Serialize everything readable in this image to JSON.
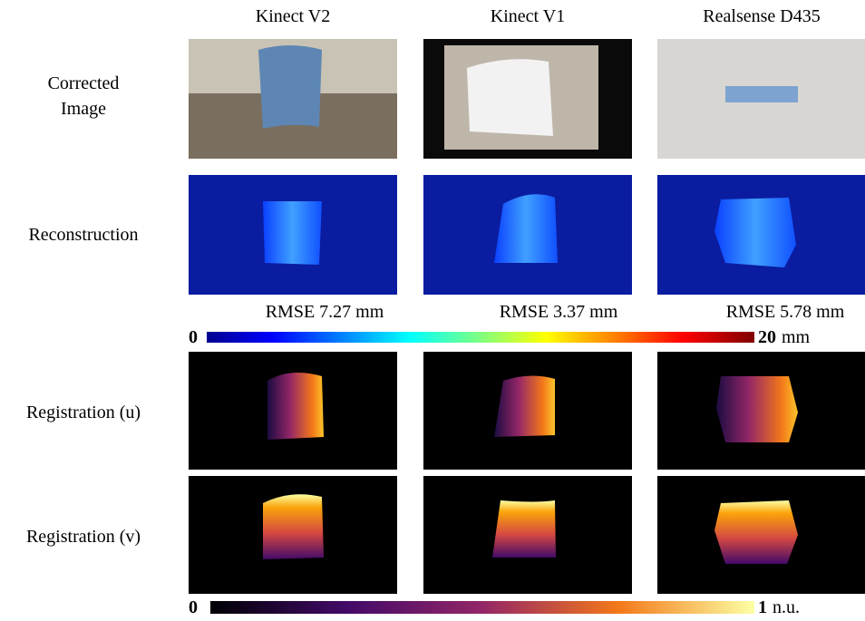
{
  "columns": [
    "Kinect V2",
    "Kinect V1",
    "Realsense D435"
  ],
  "rows": [
    [
      "Corrected",
      "Image"
    ],
    [
      "Reconstruction"
    ],
    [
      "Registration (u)"
    ],
    [
      "Registration (v)"
    ]
  ],
  "rmse": [
    "RMSE 7.27 mm",
    "RMSE 3.37 mm",
    "RMSE 5.78 mm"
  ],
  "colorbars": [
    {
      "min": "0",
      "max": "20",
      "unit": "mm"
    },
    {
      "min": "0",
      "max": "1",
      "unit": "n.u."
    }
  ]
}
